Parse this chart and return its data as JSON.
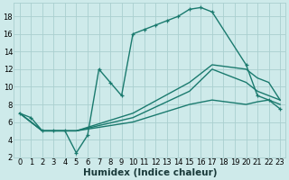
{
  "xlabel": "Humidex (Indice chaleur)",
  "ylabel": "",
  "bg_color": "#ceeaea",
  "grid_color": "#aacfcf",
  "line_color": "#1a7a6e",
  "xlim": [
    -0.5,
    23.5
  ],
  "ylim": [
    2,
    19.5
  ],
  "xticks": [
    0,
    1,
    2,
    3,
    4,
    5,
    6,
    7,
    8,
    9,
    10,
    11,
    12,
    13,
    14,
    15,
    16,
    17,
    18,
    19,
    20,
    21,
    22,
    23
  ],
  "yticks": [
    2,
    4,
    6,
    8,
    10,
    12,
    14,
    16,
    18
  ],
  "line1_x": [
    0,
    1,
    2,
    3,
    4,
    5,
    6,
    7,
    8,
    9,
    10,
    11,
    12,
    13,
    14,
    15,
    16,
    17,
    20,
    21,
    22,
    23
  ],
  "line1_y": [
    7,
    6.5,
    5,
    5,
    5,
    2.5,
    4.5,
    12,
    10.5,
    9,
    16,
    16.5,
    17,
    17.5,
    18,
    18.8,
    19,
    18.5,
    12.5,
    9,
    8.5,
    7.5
  ],
  "line2_x": [
    0,
    2,
    5,
    10,
    15,
    17,
    20,
    21,
    22,
    23
  ],
  "line2_y": [
    7,
    5,
    5,
    6,
    8,
    8.5,
    8,
    8.3,
    8.5,
    8
  ],
  "line3_x": [
    0,
    2,
    5,
    10,
    15,
    17,
    20,
    21,
    22,
    23
  ],
  "line3_y": [
    7,
    5,
    5,
    6.5,
    9.5,
    12,
    10.5,
    9.5,
    9,
    8.5
  ],
  "line4_x": [
    0,
    2,
    5,
    10,
    15,
    17,
    20,
    21,
    22,
    23
  ],
  "line4_y": [
    7,
    5,
    5,
    7,
    10.5,
    12.5,
    12,
    11,
    10.5,
    8.5
  ],
  "marker_size": 3.5,
  "marker_ew": 0.9,
  "line_width": 1.0,
  "tick_fontsize": 6,
  "label_fontsize": 7.5
}
